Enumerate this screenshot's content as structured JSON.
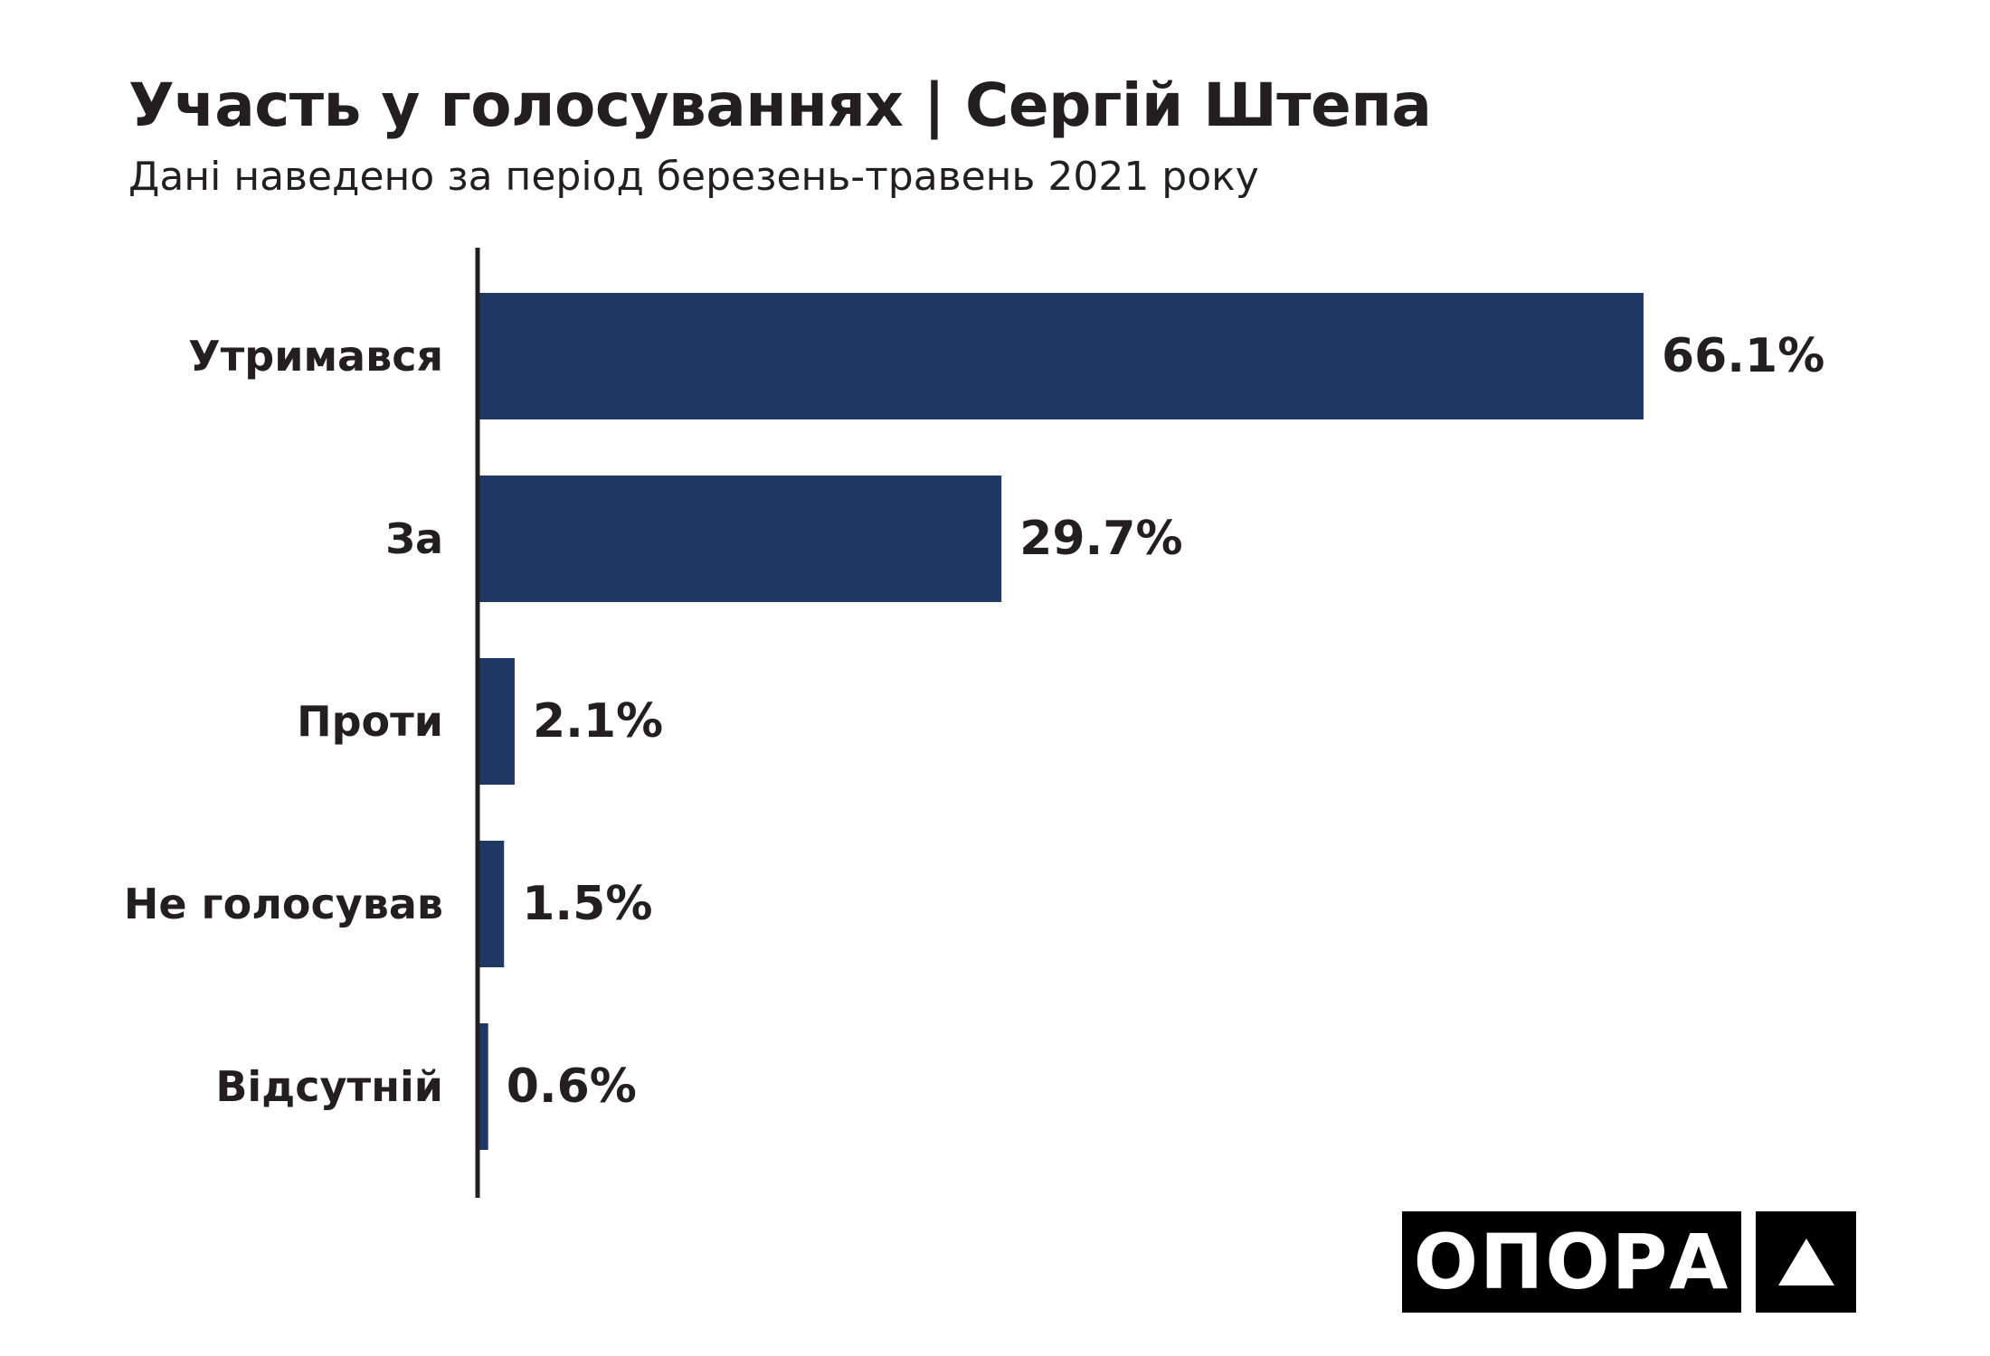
{
  "header": {
    "title": "Участь у голосуваннях | Сергій Штепа",
    "subtitle": "Дані наведено за період березень-травень 2021 року"
  },
  "logo": {
    "text": "ОПОРА",
    "mark": "triangle-icon"
  },
  "colors": {
    "bar": "#1f3864",
    "axis": "#231f20",
    "logo_bg": "#000000"
  },
  "chart_data": {
    "type": "bar",
    "orientation": "horizontal",
    "categories": [
      "Утримався",
      "За",
      "Проти",
      "Не голосував",
      "Відсутній"
    ],
    "values": [
      66.1,
      29.7,
      2.1,
      1.5,
      0.6
    ],
    "value_labels": [
      "66.1%",
      "29.7%",
      "2.1%",
      "1.5%",
      "0.6%"
    ],
    "unit": "%",
    "grid": false,
    "legend": "none"
  }
}
